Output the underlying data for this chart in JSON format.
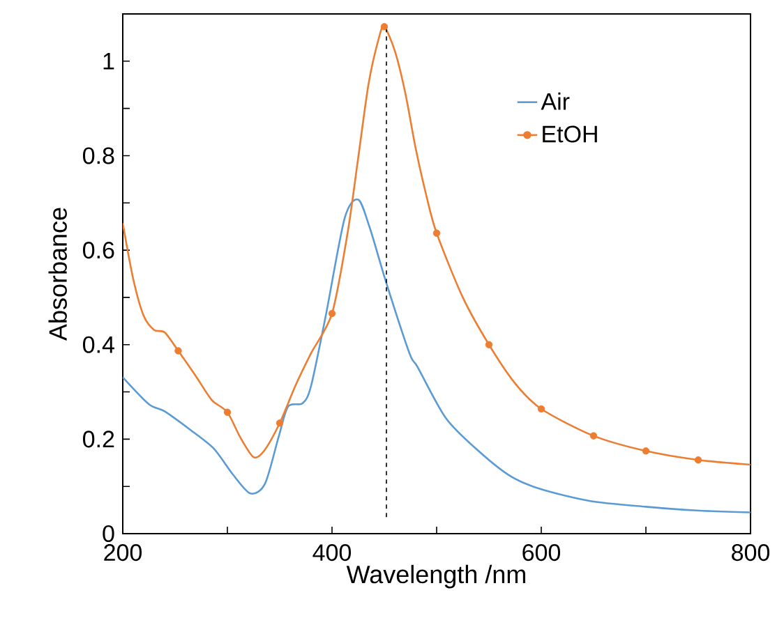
{
  "chart_data": {
    "type": "line",
    "xlabel": "Wavelength /nm",
    "ylabel": "Absorbance",
    "xlim": [
      200,
      800
    ],
    "xticks": [
      200,
      {
        "value": 300,
        "label": null
      },
      400,
      {
        "value": 500,
        "label": null
      },
      600,
      {
        "value": 700,
        "label": null
      },
      800
    ],
    "ylim": [
      0,
      1.1
    ],
    "yticks": [
      0,
      {
        "value": 0.1,
        "label": null
      },
      0.2,
      {
        "value": 0.3,
        "label": null
      },
      0.4,
      {
        "value": 0.5,
        "label": null
      },
      0.6,
      {
        "value": 0.7,
        "label": null
      },
      0.8,
      {
        "value": 0.9,
        "label": null
      },
      1
    ],
    "grid": false,
    "legend": "top right",
    "line_style": "solid",
    "series": [
      {
        "name": "Air",
        "color": "#5b9bd5",
        "marker": "none",
        "x": [
          200,
          225,
          240,
          265,
          287,
          305,
          322,
          336,
          349,
          358,
          372,
          380,
          394,
          412,
          425,
          436,
          452,
          474,
          482,
          509,
          540,
          571,
          600,
          647,
          700,
          749,
          800
        ],
        "values": [
          0.331,
          0.274,
          0.259,
          0.219,
          0.18,
          0.126,
          0.085,
          0.106,
          0.205,
          0.269,
          0.276,
          0.313,
          0.461,
          0.667,
          0.707,
          0.648,
          0.53,
          0.382,
          0.352,
          0.244,
          0.175,
          0.121,
          0.094,
          0.069,
          0.057,
          0.049,
          0.045
        ]
      },
      {
        "name": "EtOH",
        "color": "#ed7d31",
        "marker": "none",
        "x": [
          200,
          210,
          220,
          230,
          240,
          253,
          270,
          285,
          300,
          312,
          325,
          335,
          350,
          365,
          380,
          400,
          415,
          425,
          435,
          445,
          450,
          460,
          470,
          480,
          490,
          500,
          525,
          550,
          575,
          600,
          650,
          700,
          750,
          800
        ],
        "values": [
          0.657,
          0.539,
          0.461,
          0.431,
          0.426,
          0.387,
          0.333,
          0.283,
          0.257,
          0.205,
          0.162,
          0.175,
          0.234,
          0.313,
          0.382,
          0.466,
          0.638,
          0.795,
          0.953,
          1.051,
          1.073,
          1.022,
          0.933,
          0.815,
          0.717,
          0.636,
          0.5,
          0.4,
          0.318,
          0.264,
          0.207,
          0.175,
          0.156,
          0.146
        ]
      },
      {
        "type": "scatter",
        "color": "#ed7d31",
        "marker": "circle",
        "x": [
          253,
          300,
          350,
          400,
          450,
          500,
          550,
          600,
          650,
          700,
          750
        ],
        "values": [
          0.387,
          0.257,
          0.234,
          0.466,
          1.073,
          0.636,
          0.4,
          0.264,
          0.207,
          0.175,
          0.156
        ]
      },
      {
        "type": "line",
        "color": "#000000",
        "marker": "none",
        "line_style": "dashed",
        "x": [
          452,
          452
        ],
        "values": [
          0.035,
          1.073
        ]
      }
    ]
  }
}
